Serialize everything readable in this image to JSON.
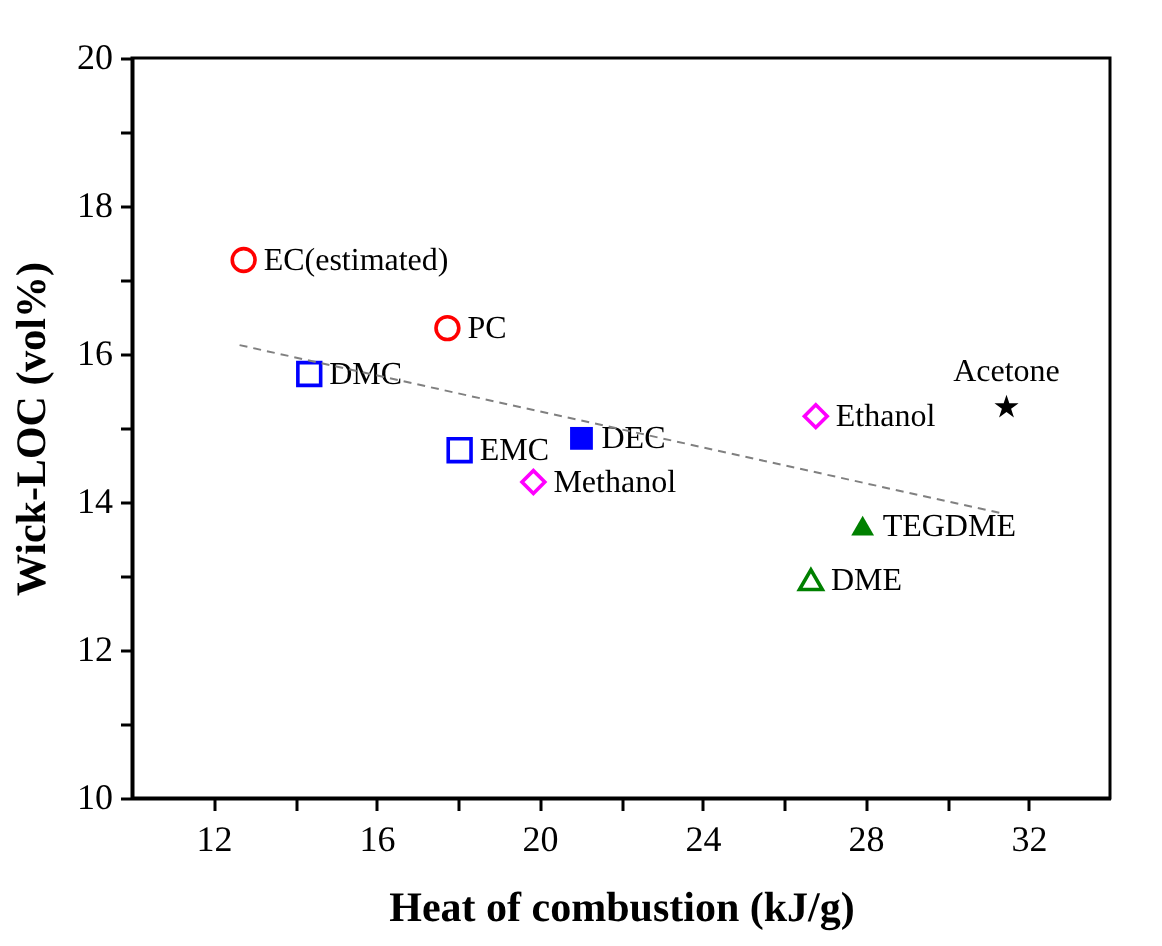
{
  "chart_data": {
    "type": "scatter",
    "xlabel": "Heat of combustion (kJ/g)",
    "ylabel": "Wick-LOC (vol%)",
    "xlim": [
      10,
      34
    ],
    "ylim": [
      10,
      20
    ],
    "xticks": [
      12,
      {
        "value": 14,
        "label": null
      },
      16,
      {
        "value": 18,
        "label": null
      },
      20,
      {
        "value": 22,
        "label": null
      },
      24,
      {
        "value": 26,
        "label": null
      },
      28,
      {
        "value": 30,
        "label": null
      },
      32
    ],
    "yticks": [
      10,
      {
        "value": 11,
        "label": null
      },
      12,
      {
        "value": 13,
        "label": null
      },
      14,
      {
        "value": 15,
        "label": null
      },
      16,
      {
        "value": 17,
        "label": null
      },
      18,
      {
        "value": 19,
        "label": null
      },
      20
    ],
    "grid": false,
    "series": [
      {
        "name": "EC(estimated)",
        "color": "#ff0000",
        "marker": "circle",
        "x": [
          12.74
        ],
        "values": [
          17.27
        ]
      },
      {
        "name": "PC",
        "color": "#ff0000",
        "marker": "circle",
        "x": [
          17.74
        ],
        "values": [
          16.35
        ]
      },
      {
        "name": "DMC",
        "color": "#0000ff",
        "marker": "square",
        "x": [
          14.35
        ],
        "values": [
          15.73
        ]
      },
      {
        "name": "EMC",
        "color": "#0000ff",
        "marker": "square",
        "x": [
          18.04
        ],
        "values": [
          14.7
        ]
      },
      {
        "name": "DEC",
        "color": "#0000ff",
        "marker": "square_filled",
        "x": [
          21.03
        ],
        "values": [
          14.86
        ]
      },
      {
        "name": "Methanol",
        "color": "#ff00ff",
        "marker": "diamond",
        "x": [
          19.85
        ],
        "values": [
          14.27
        ]
      },
      {
        "name": "Ethanol",
        "color": "#ff00ff",
        "marker": "diamond",
        "x": [
          26.78
        ],
        "values": [
          15.16
        ]
      },
      {
        "name": "Acetone",
        "color": "#000000",
        "marker": "star",
        "x": [
          31.46
        ],
        "values": [
          15.28
        ]
      },
      {
        "name": "TEGDME",
        "color": "#008000",
        "marker": "triangle_filled",
        "x": [
          27.93
        ],
        "values": [
          13.68
        ]
      },
      {
        "name": "DME",
        "color": "#008000",
        "marker": "triangle",
        "x": [
          26.66
        ],
        "values": [
          12.95
        ]
      },
      {
        "type": "line",
        "color": "#808080",
        "line_style": "dashed",
        "x": [
          12.64,
          31.4
        ],
        "values": [
          16.12,
          13.84
        ]
      }
    ]
  }
}
